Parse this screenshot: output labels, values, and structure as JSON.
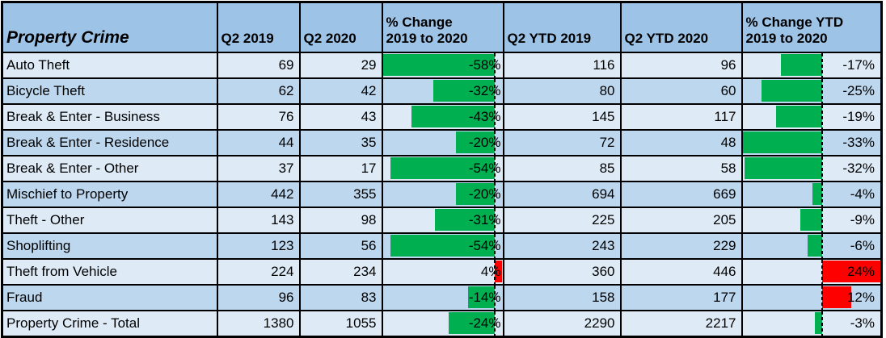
{
  "chart_data": {
    "type": "table",
    "title": "Property Crime",
    "headers": {
      "row_label": "Property Crime",
      "q2_2019": "Q2 2019",
      "q2_2020": "Q2 2020",
      "q2_change": "% Change\n2019 to 2020",
      "ytd_2019": "Q2 YTD 2019",
      "ytd_2020": "Q2 YTD 2020",
      "ytd_change": "% Change YTD\n2019 to 2020"
    },
    "rows": [
      {
        "label": "Auto Theft",
        "q2_2019": 69,
        "q2_2020": 29,
        "q2_change": -58,
        "q2_change_label": "-58%",
        "ytd_2019": 116,
        "ytd_2020": 96,
        "ytd_change": -17,
        "ytd_change_label": "-17%"
      },
      {
        "label": "Bicycle Theft",
        "q2_2019": 62,
        "q2_2020": 42,
        "q2_change": -32,
        "q2_change_label": "-32%",
        "ytd_2019": 80,
        "ytd_2020": 60,
        "ytd_change": -25,
        "ytd_change_label": "-25%"
      },
      {
        "label": "Break & Enter - Business",
        "q2_2019": 76,
        "q2_2020": 43,
        "q2_change": -43,
        "q2_change_label": "-43%",
        "ytd_2019": 145,
        "ytd_2020": 117,
        "ytd_change": -19,
        "ytd_change_label": "-19%"
      },
      {
        "label": "Break & Enter - Residence",
        "q2_2019": 44,
        "q2_2020": 35,
        "q2_change": -20,
        "q2_change_label": "-20%",
        "ytd_2019": 72,
        "ytd_2020": 48,
        "ytd_change": -33,
        "ytd_change_label": "-33%"
      },
      {
        "label": "Break & Enter - Other",
        "q2_2019": 37,
        "q2_2020": 17,
        "q2_change": -54,
        "q2_change_label": "-54%",
        "ytd_2019": 85,
        "ytd_2020": 58,
        "ytd_change": -32,
        "ytd_change_label": "-32%"
      },
      {
        "label": "Mischief to Property",
        "q2_2019": 442,
        "q2_2020": 355,
        "q2_change": -20,
        "q2_change_label": "-20%",
        "ytd_2019": 694,
        "ytd_2020": 669,
        "ytd_change": -4,
        "ytd_change_label": "-4%"
      },
      {
        "label": "Theft - Other",
        "q2_2019": 143,
        "q2_2020": 98,
        "q2_change": -31,
        "q2_change_label": "-31%",
        "ytd_2019": 225,
        "ytd_2020": 205,
        "ytd_change": -9,
        "ytd_change_label": "-9%"
      },
      {
        "label": "Shoplifting",
        "q2_2019": 123,
        "q2_2020": 56,
        "q2_change": -54,
        "q2_change_label": "-54%",
        "ytd_2019": 243,
        "ytd_2020": 229,
        "ytd_change": -6,
        "ytd_change_label": "-6%"
      },
      {
        "label": "Theft from Vehicle",
        "q2_2019": 224,
        "q2_2020": 234,
        "q2_change": 4,
        "q2_change_label": "4%",
        "ytd_2019": 360,
        "ytd_2020": 446,
        "ytd_change": 24,
        "ytd_change_label": "24%"
      },
      {
        "label": "Fraud",
        "q2_2019": 96,
        "q2_2020": 83,
        "q2_change": -14,
        "q2_change_label": "-14%",
        "ytd_2019": 158,
        "ytd_2020": 177,
        "ytd_change": 12,
        "ytd_change_label": "12%"
      },
      {
        "label": "Property Crime - Total",
        "q2_2019": 1380,
        "q2_2020": 1055,
        "q2_change": -24,
        "q2_change_label": "-24%",
        "ytd_2019": 2290,
        "ytd_2020": 2217,
        "ytd_change": -3,
        "ytd_change_label": "-3%"
      }
    ],
    "databars": {
      "q2": {
        "min": -58,
        "max": 4
      },
      "ytd": {
        "min": -33,
        "max": 24
      }
    },
    "colors": {
      "bar_negative": "#00B050",
      "bar_positive": "#FF0000",
      "header_bg": "#9DC3E6",
      "row_light": "#DEEBF7",
      "row_dark": "#BDD7EE",
      "border": "#000000",
      "text": "#000000"
    },
    "layout": {
      "grid": "black cell borders",
      "negative_bars_extend_left_of_dashed_axis": true,
      "positive_bars_extend_right_of_dashed_axis": true
    }
  }
}
